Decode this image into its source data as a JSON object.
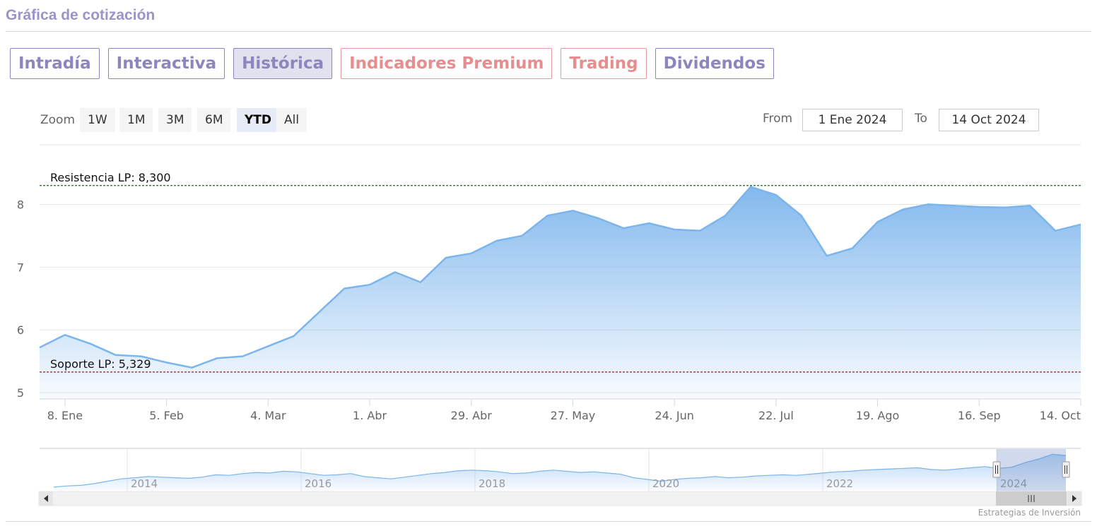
{
  "section": {
    "title": "Gráfica de cotización"
  },
  "tabs": [
    {
      "label": "Intradía"
    },
    {
      "label": "Interactiva"
    },
    {
      "label": "Histórica"
    },
    {
      "label": "Indicadores Premium"
    },
    {
      "label": "Trading"
    },
    {
      "label": "Dividendos"
    }
  ],
  "active_tab": "Histórica",
  "zoom": {
    "label": "Zoom",
    "options": [
      "1W",
      "1M",
      "3M",
      "6M",
      "YTD",
      "All"
    ],
    "selected": "YTD"
  },
  "range": {
    "from_label": "From",
    "from_value": "1 Ene 2024",
    "to_label": "To",
    "to_value": "14 Oct 2024"
  },
  "credits": "Estrategias de Inversión",
  "colors": {
    "line": "#7cb5ec",
    "resistance": "#1a6b1a",
    "support": "#9e1b1b",
    "tab_purple": "#8c86bf",
    "tab_red": "#e88d8d"
  },
  "chart_data": {
    "type": "area",
    "title": "",
    "xlabel": "",
    "ylabel": "",
    "ylim": [
      4.9,
      8.95
    ],
    "y_ticks": [
      "5",
      "6",
      "7",
      "8"
    ],
    "x_ticks": [
      "8. Ene",
      "5. Feb",
      "4. Mar",
      "1. Abr",
      "29. Abr",
      "27. May",
      "24. Jun",
      "22. Jul",
      "19. Ago",
      "16. Sep",
      "14. Oct"
    ],
    "x": [
      "2024-01-01",
      "2024-01-08",
      "2024-01-15",
      "2024-01-22",
      "2024-01-29",
      "2024-02-05",
      "2024-02-12",
      "2024-02-19",
      "2024-02-26",
      "2024-03-04",
      "2024-03-11",
      "2024-03-18",
      "2024-03-25",
      "2024-04-01",
      "2024-04-08",
      "2024-04-15",
      "2024-04-22",
      "2024-04-29",
      "2024-05-06",
      "2024-05-13",
      "2024-05-20",
      "2024-05-27",
      "2024-06-03",
      "2024-06-10",
      "2024-06-17",
      "2024-06-24",
      "2024-07-01",
      "2024-07-08",
      "2024-07-15",
      "2024-07-22",
      "2024-07-29",
      "2024-08-05",
      "2024-08-12",
      "2024-08-19",
      "2024-08-26",
      "2024-09-02",
      "2024-09-09",
      "2024-09-16",
      "2024-09-23",
      "2024-09-30",
      "2024-10-07",
      "2024-10-14"
    ],
    "series": [
      {
        "values": [
          5.72,
          5.92,
          5.78,
          5.6,
          5.58,
          5.48,
          5.4,
          5.55,
          5.58,
          5.74,
          5.9,
          6.28,
          6.66,
          6.72,
          6.92,
          6.76,
          7.15,
          7.22,
          7.42,
          7.5,
          7.82,
          7.9,
          7.78,
          7.62,
          7.7,
          7.6,
          7.58,
          7.82,
          8.28,
          8.15,
          7.82,
          7.18,
          7.3,
          7.72,
          7.92,
          8.0,
          7.98,
          7.96,
          7.95,
          7.98,
          7.58,
          7.68
        ]
      }
    ],
    "annotations": [
      {
        "label": "Resistencia LP: 8,300",
        "value": 8.3
      },
      {
        "label": "Soporte LP: 5,329",
        "value": 5.329
      }
    ],
    "navigator": {
      "year_labels": [
        "2014",
        "2016",
        "2018",
        "2020",
        "2022",
        "2024"
      ],
      "values": [
        5.0,
        5.2,
        5.3,
        5.6,
        6.0,
        6.4,
        6.6,
        6.8,
        6.7,
        6.6,
        6.5,
        6.7,
        7.1,
        7.0,
        7.3,
        7.5,
        7.4,
        7.7,
        7.6,
        7.3,
        7.0,
        7.1,
        7.3,
        6.8,
        6.6,
        6.4,
        6.7,
        7.0,
        7.3,
        7.5,
        7.8,
        7.9,
        7.8,
        7.6,
        7.3,
        7.4,
        7.7,
        7.9,
        7.7,
        7.5,
        7.6,
        7.4,
        7.2,
        6.6,
        6.3,
        6.0,
        6.3,
        6.5,
        6.6,
        6.8,
        6.6,
        6.7,
        6.9,
        7.0,
        7.1,
        7.0,
        7.2,
        7.4,
        7.6,
        7.7,
        7.9,
        8.0,
        8.1,
        8.2,
        8.3,
        8.0,
        7.9,
        8.1,
        8.3,
        8.5,
        8.2,
        8.4,
        9.2,
        9.8,
        10.6,
        10.4
      ]
    }
  }
}
